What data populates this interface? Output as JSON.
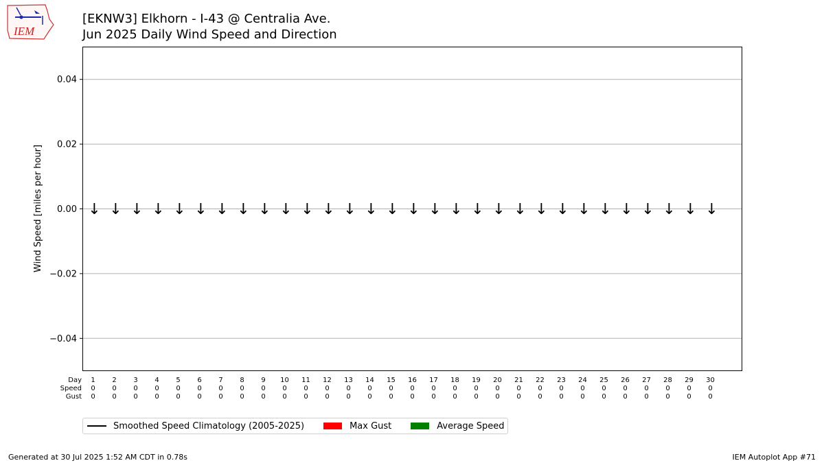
{
  "title_line1": "[EKNW3] Elkhorn - I-43 @ Centralia Ave.",
  "title_line2": "Jun 2025 Daily Wind Speed and Direction",
  "logo_text": "IEM",
  "chart_data": {
    "type": "bar",
    "ylabel": "Wind Speed [miles per hour]",
    "ylim": [
      -0.05,
      0.05
    ],
    "yticks": [
      -0.04,
      -0.02,
      0.0,
      0.02,
      0.04
    ],
    "ytick_labels": [
      "−0.04",
      "−0.02",
      "0.00",
      "0.02",
      "0.04"
    ],
    "grid": "horizontal",
    "row_labels": [
      "Day",
      "Speed",
      "Gust"
    ],
    "days": [
      1,
      2,
      3,
      4,
      5,
      6,
      7,
      8,
      9,
      10,
      11,
      12,
      13,
      14,
      15,
      16,
      17,
      18,
      19,
      20,
      21,
      22,
      23,
      24,
      25,
      26,
      27,
      28,
      29,
      30
    ],
    "speed": [
      0,
      0,
      0,
      0,
      0,
      0,
      0,
      0,
      0,
      0,
      0,
      0,
      0,
      0,
      0,
      0,
      0,
      0,
      0,
      0,
      0,
      0,
      0,
      0,
      0,
      0,
      0,
      0,
      0,
      0
    ],
    "gust": [
      0,
      0,
      0,
      0,
      0,
      0,
      0,
      0,
      0,
      0,
      0,
      0,
      0,
      0,
      0,
      0,
      0,
      0,
      0,
      0,
      0,
      0,
      0,
      0,
      0,
      0,
      0,
      0,
      0,
      0
    ],
    "direction_arrow": "↓",
    "series": [
      {
        "name": "Smoothed Speed Climatology (2005-2025)",
        "color": "#000000"
      },
      {
        "name": "Max Gust",
        "color": "#ff0000"
      },
      {
        "name": "Average Speed",
        "color": "#008000"
      }
    ],
    "legend_placement": "below"
  },
  "footer": {
    "left": "Generated at 30 Jul 2025 1:52 AM CDT in 0.78s",
    "right": "IEM Autoplot App #71"
  }
}
